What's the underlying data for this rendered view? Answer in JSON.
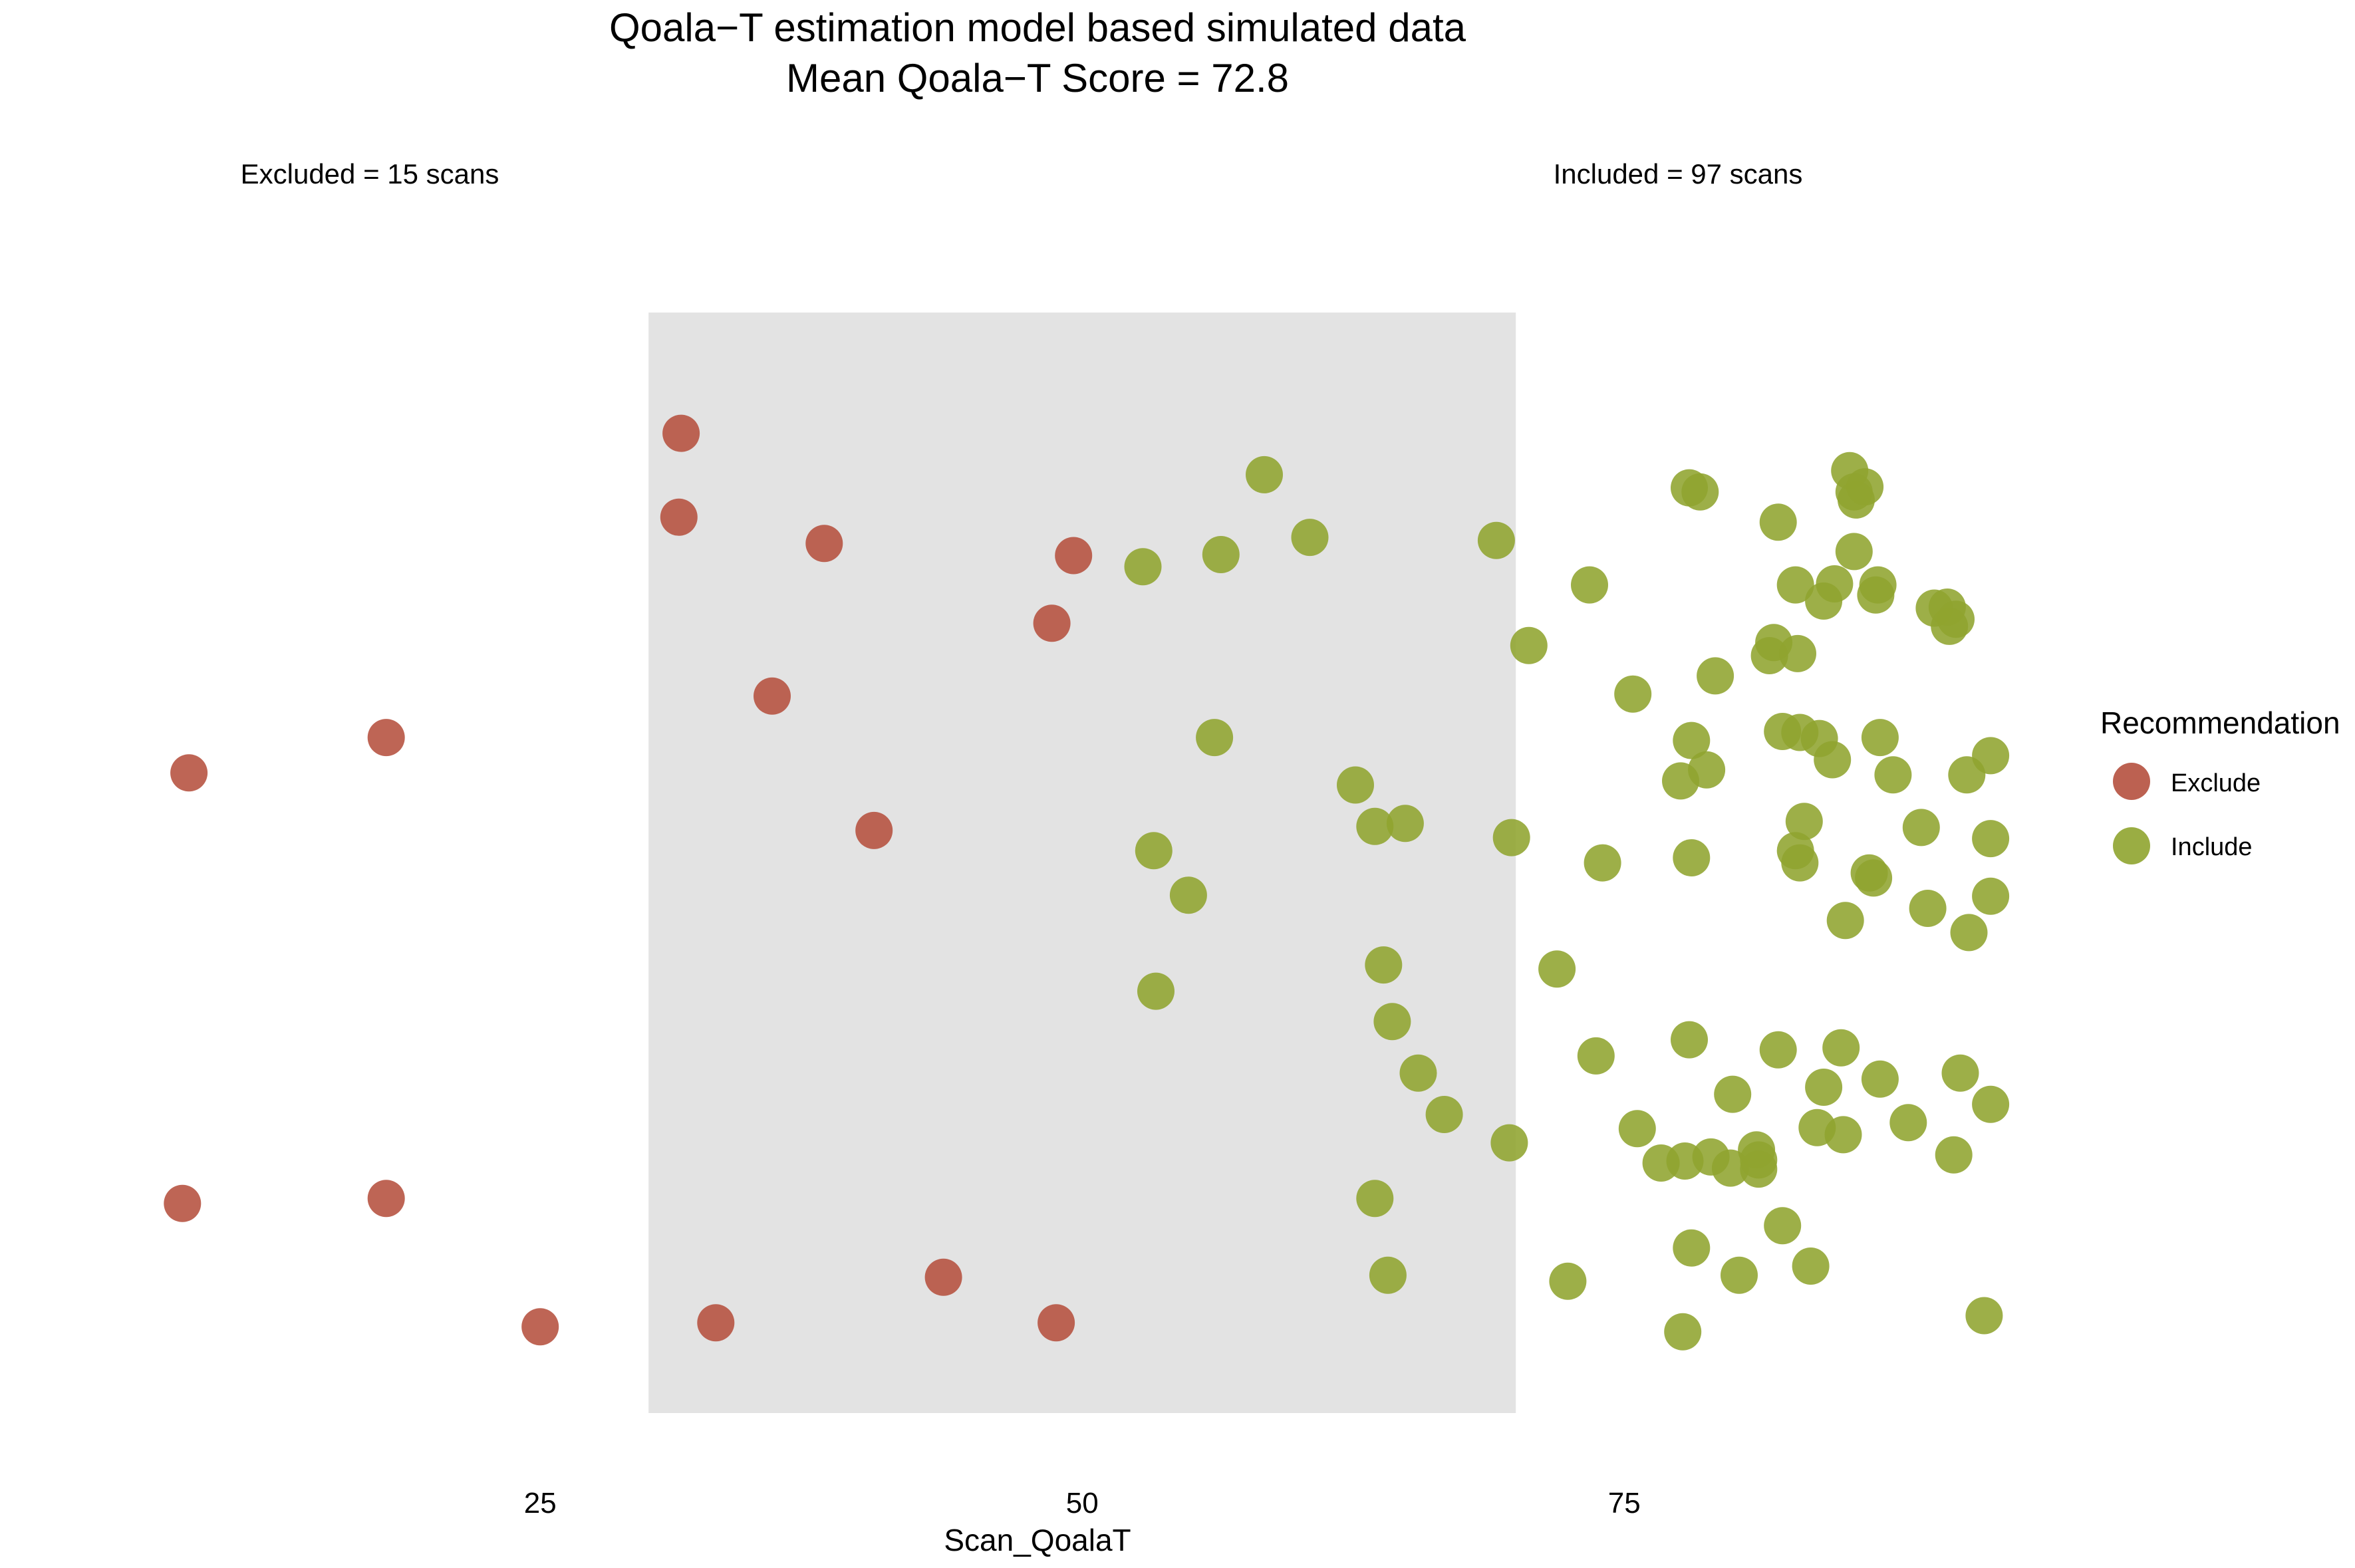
{
  "chart_data": {
    "type": "scatter",
    "title": "Qoala−T estimation model based simulated data",
    "subtitle": "Mean Qoala−T Score = 72.8",
    "xlabel": "Scan_QoalaT",
    "ylabel": "",
    "xlim": [
      3,
      100
    ],
    "ylim": [
      0,
      1
    ],
    "xticks": [
      "25",
      "50",
      "75"
    ],
    "tick_values": [
      25,
      50,
      75
    ],
    "grid": false,
    "shaded_band": {
      "x": [
        30,
        70
      ],
      "color": "#e3e3e3"
    },
    "annotations": {
      "excluded": "Excluded = 15 scans",
      "included": "Included = 97 scans"
    },
    "legend": {
      "title": "Recommendation",
      "position": "right",
      "entries": [
        "Exclude",
        "Include"
      ]
    },
    "colors": {
      "Exclude": "#b5503e",
      "Include": "#8fa42f"
    },
    "series": [
      {
        "name": "Exclude",
        "points": [
          [
            31.5,
            0.897
          ],
          [
            31.4,
            0.814
          ],
          [
            38.1,
            0.788
          ],
          [
            49.6,
            0.776
          ],
          [
            48.6,
            0.709
          ],
          [
            35.7,
            0.637
          ],
          [
            17.9,
            0.596
          ],
          [
            8.8,
            0.561
          ],
          [
            40.4,
            0.504
          ],
          [
            8.5,
            0.135
          ],
          [
            17.9,
            0.14
          ],
          [
            25.0,
            0.013
          ],
          [
            33.1,
            0.017
          ],
          [
            43.6,
            0.062
          ],
          [
            48.8,
            0.017
          ]
        ]
      },
      {
        "name": "Include",
        "points": [
          [
            58.4,
            0.856
          ],
          [
            60.5,
            0.794
          ],
          [
            56.4,
            0.777
          ],
          [
            52.8,
            0.765
          ],
          [
            69.1,
            0.791
          ],
          [
            56.1,
            0.596
          ],
          [
            62.6,
            0.549
          ],
          [
            63.5,
            0.508
          ],
          [
            64.9,
            0.511
          ],
          [
            69.8,
            0.497
          ],
          [
            53.3,
            0.484
          ],
          [
            54.9,
            0.44
          ],
          [
            53.4,
            0.345
          ],
          [
            63.9,
            0.371
          ],
          [
            64.3,
            0.315
          ],
          [
            65.5,
            0.264
          ],
          [
            66.7,
            0.223
          ],
          [
            63.5,
            0.14
          ],
          [
            69.7,
            0.195
          ],
          [
            64.1,
            0.064
          ],
          [
            70.6,
            0.687
          ],
          [
            71.9,
            0.367
          ],
          [
            73.7,
            0.281
          ],
          [
            72.4,
            0.058
          ],
          [
            73.4,
            0.747
          ],
          [
            74.0,
            0.472
          ],
          [
            75.4,
            0.639
          ],
          [
            75.6,
            0.209
          ],
          [
            76.7,
            0.175
          ],
          [
            77.8,
            0.177
          ],
          [
            77.7,
            0.008
          ],
          [
            78.1,
            0.091
          ],
          [
            78.0,
            0.297
          ],
          [
            78.1,
            0.477
          ],
          [
            77.6,
            0.553
          ],
          [
            78.0,
            0.843
          ],
          [
            78.5,
            0.839
          ],
          [
            78.1,
            0.593
          ],
          [
            78.8,
            0.564
          ],
          [
            79.2,
            0.657
          ],
          [
            80.0,
            0.243
          ],
          [
            79.9,
            0.17
          ],
          [
            80.3,
            0.064
          ],
          [
            81.1,
            0.188
          ],
          [
            81.2,
            0.169
          ],
          [
            81.7,
            0.677
          ],
          [
            81.9,
            0.69
          ],
          [
            82.1,
            0.809
          ],
          [
            82.1,
            0.287
          ],
          [
            82.3,
            0.113
          ],
          [
            82.3,
            0.602
          ],
          [
            83.1,
            0.601
          ],
          [
            82.9,
            0.484
          ],
          [
            83.0,
            0.679
          ],
          [
            82.9,
            0.747
          ],
          [
            83.1,
            0.472
          ],
          [
            83.3,
            0.513
          ],
          [
            83.6,
            0.073
          ],
          [
            83.9,
            0.21
          ],
          [
            84.0,
            0.595
          ],
          [
            84.2,
            0.25
          ],
          [
            84.2,
            0.731
          ],
          [
            84.7,
            0.748
          ],
          [
            84.6,
            0.574
          ],
          [
            85.0,
            0.289
          ],
          [
            85.1,
            0.203
          ],
          [
            85.2,
            0.415
          ],
          [
            85.4,
            0.86
          ],
          [
            85.6,
            0.78
          ],
          [
            85.6,
            0.839
          ],
          [
            85.7,
            0.831
          ],
          [
            86.1,
            0.844
          ],
          [
            86.3,
            0.462
          ],
          [
            86.5,
            0.457
          ],
          [
            86.6,
            0.737
          ],
          [
            86.7,
            0.747
          ],
          [
            86.8,
            0.596
          ],
          [
            86.8,
            0.258
          ],
          [
            87.4,
            0.559
          ],
          [
            88.1,
            0.215
          ],
          [
            88.7,
            0.507
          ],
          [
            89.0,
            0.427
          ],
          [
            89.3,
            0.724
          ],
          [
            89.9,
            0.725
          ],
          [
            90.2,
            0.183
          ],
          [
            90.0,
            0.706
          ],
          [
            90.3,
            0.713
          ],
          [
            90.5,
            0.264
          ],
          [
            90.8,
            0.559
          ],
          [
            90.9,
            0.403
          ],
          [
            91.9,
            0.578
          ],
          [
            91.9,
            0.496
          ],
          [
            91.9,
            0.439
          ],
          [
            91.9,
            0.233
          ],
          [
            91.6,
            0.024
          ],
          [
            81.2,
            0.178
          ],
          [
            79.0,
            0.181
          ]
        ]
      }
    ]
  }
}
